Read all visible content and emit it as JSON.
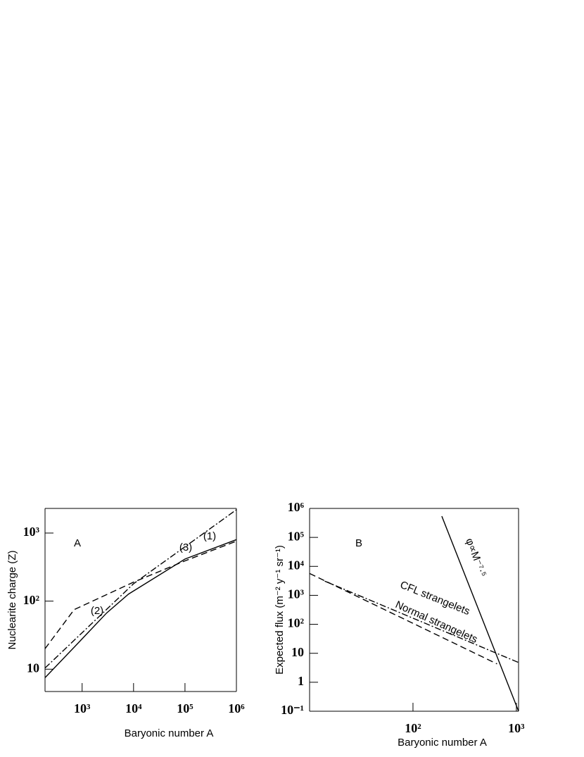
{
  "chart_data": [
    {
      "type": "line",
      "xlabel": "Baryonic number A",
      "ylabel": "Nuclearite charge (Z)",
      "xlog": true,
      "ylog": true,
      "xlim": [
        190,
        1000000
      ],
      "ylim": [
        4.7,
        2300
      ],
      "xticks": [
        {
          "value": 1000,
          "label": "10³"
        },
        {
          "value": 10000,
          "label": "10⁴"
        },
        {
          "value": 100000,
          "label": "10⁵"
        },
        {
          "value": 1000000,
          "label": "10⁶"
        }
      ],
      "yticks": [
        10,
        {
          "value": 100,
          "label": "10²"
        },
        {
          "value": 1000,
          "label": "10³"
        }
      ],
      "annotations": [
        "A",
        "(1)",
        "(2)",
        "(3)"
      ],
      "series": [
        {
          "color": "#000000",
          "dash": "solid",
          "x": [
            190,
            700,
            3000,
            8000,
            100000,
            1000000
          ],
          "values": [
            7.5,
            21,
            67,
            127,
            415,
            800
          ]
        },
        {
          "color": "#000000",
          "dash": "dashed",
          "x": [
            190,
            700,
            10000,
            100000,
            1000000
          ],
          "values": [
            20,
            75,
            190,
            390,
            760
          ]
        },
        {
          "color": "#000000",
          "dash": "dashdot",
          "x": [
            190,
            10000,
            1000000
          ],
          "values": [
            10.4,
            180,
            2200
          ]
        }
      ]
    },
    {
      "type": "line",
      "xlabel": "Baryonic number A",
      "ylabel": "Expected flux (m⁻² y⁻¹ sr⁻¹)",
      "xlog": true,
      "ylog": true,
      "xlim": [
        10,
        1050
      ],
      "ylim": [
        0.1,
        1000000
      ],
      "xticks": [
        {
          "value": 100,
          "label": "10²"
        },
        {
          "value": 1000,
          "label": "10³"
        }
      ],
      "yticks": [
        {
          "value": 0.1,
          "label": "10⁻¹"
        },
        1,
        10,
        {
          "value": 100,
          "label": "10²"
        },
        {
          "value": 1000,
          "label": "10³"
        },
        {
          "value": 10000,
          "label": "10⁴"
        },
        {
          "value": 100000,
          "label": "10⁵"
        },
        {
          "value": 1000000,
          "label": "10⁶"
        }
      ],
      "annotations": [
        "B",
        "φ∝M⁻⁷·⁵",
        "CFL strangelets",
        "Normal strangelets"
      ],
      "series": [
        {
          "color": "#000000",
          "dash": "solid",
          "x": [
            190,
            1050
          ],
          "values": [
            540000,
            0.1
          ]
        },
        {
          "color": "#000000",
          "dash": "dashed",
          "x": [
            10,
            650
          ],
          "values": [
            5700,
            4.3
          ]
        },
        {
          "color": "#000000",
          "dash": "dashdot",
          "x": [
            14,
            1050
          ],
          "values": [
            3100,
            4.8
          ]
        }
      ]
    }
  ]
}
